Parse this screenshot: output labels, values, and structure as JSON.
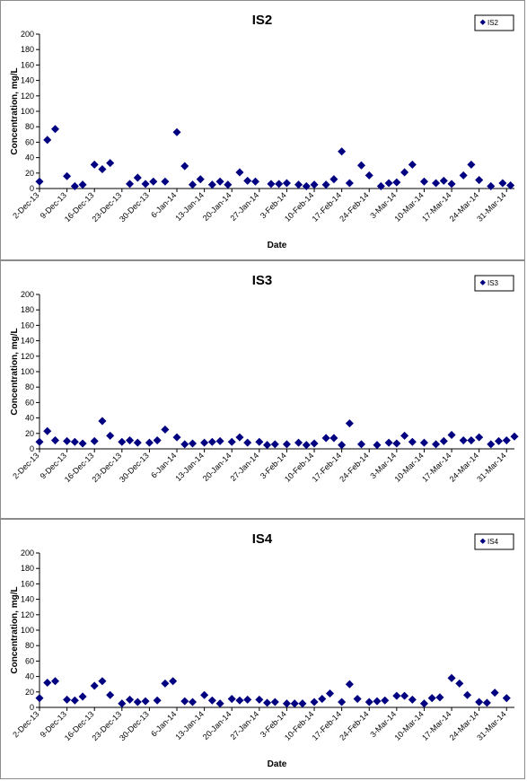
{
  "chart_data": [
    {
      "type": "scatter",
      "title": "IS2",
      "xlabel": "Date",
      "ylabel": "Concentration, mg/L",
      "ylim": [
        0,
        200
      ],
      "yticks": [
        "0",
        "20",
        "40",
        "60",
        "80",
        "100",
        "120",
        "140",
        "160",
        "180",
        "200"
      ],
      "xticks": [
        "2-Dec-13",
        "9-Dec-13",
        "16-Dec-13",
        "23-Dec-13",
        "30-Dec-13",
        "6-Jan-14",
        "13-Jan-14",
        "20-Jan-14",
        "27-Jan-14",
        "3-Feb-14",
        "10-Feb-14",
        "17-Feb-14",
        "24-Feb-14",
        "3-Mar-14",
        "10-Mar-14",
        "17-Mar-14",
        "24-Mar-14",
        "31-Mar-14"
      ],
      "xlim": [
        "2-Dec-13",
        "2-Apr-14"
      ],
      "legend": "top-right",
      "grid": false,
      "series": [
        {
          "name": "IS2",
          "x": [
            "2-Dec-13",
            "4-Dec-13",
            "6-Dec-13",
            "9-Dec-13",
            "11-Dec-13",
            "13-Dec-13",
            "16-Dec-13",
            "18-Dec-13",
            "20-Dec-13",
            "25-Dec-13",
            "27-Dec-13",
            "29-Dec-13",
            "31-Dec-13",
            "3-Jan-14",
            "6-Jan-14",
            "8-Jan-14",
            "10-Jan-14",
            "12-Jan-14",
            "15-Jan-14",
            "17-Jan-14",
            "19-Jan-14",
            "22-Jan-14",
            "24-Jan-14",
            "26-Jan-14",
            "30-Jan-14",
            "1-Feb-14",
            "3-Feb-14",
            "6-Feb-14",
            "8-Feb-14",
            "10-Feb-14",
            "13-Feb-14",
            "15-Feb-14",
            "17-Feb-14",
            "19-Feb-14",
            "22-Feb-14",
            "24-Feb-14",
            "27-Feb-14",
            "1-Mar-14",
            "3-Mar-14",
            "5-Mar-14",
            "7-Mar-14",
            "10-Mar-14",
            "13-Mar-14",
            "15-Mar-14",
            "17-Mar-14",
            "20-Mar-14",
            "22-Mar-14",
            "24-Mar-14",
            "27-Mar-14",
            "30-Mar-14",
            "1-Apr-14"
          ],
          "y": [
            9,
            63,
            77,
            16,
            3,
            5,
            31,
            25,
            33,
            6,
            14,
            6,
            9,
            9,
            73,
            29,
            5,
            12,
            5,
            9,
            5,
            21,
            10,
            9,
            6,
            6,
            7,
            5,
            3,
            5,
            5,
            12,
            48,
            7,
            30,
            17,
            3,
            7,
            8,
            21,
            31,
            9,
            7,
            10,
            6,
            17,
            31,
            11,
            3,
            7,
            4
          ]
        }
      ]
    },
    {
      "type": "scatter",
      "title": "IS3",
      "xlabel": "",
      "ylabel": "Concentration, mg/L",
      "ylim": [
        0,
        200
      ],
      "yticks": [
        "0",
        "20",
        "40",
        "60",
        "80",
        "100",
        "120",
        "140",
        "160",
        "180",
        "200"
      ],
      "xticks": [
        "2-Dec-13",
        "9-Dec-13",
        "16-Dec-13",
        "23-Dec-13",
        "30-Dec-13",
        "6-Jan-14",
        "13-Jan-14",
        "20-Jan-14",
        "27-Jan-14",
        "3-Feb-14",
        "10-Feb-14",
        "17-Feb-14",
        "24-Feb-14",
        "3-Mar-14",
        "10-Mar-14",
        "17-Mar-14",
        "24-Mar-14",
        "31-Mar-14"
      ],
      "xlim": [
        "2-Dec-13",
        "2-Apr-14"
      ],
      "legend": "top-right",
      "grid": false,
      "series": [
        {
          "name": "IS3",
          "x": [
            "2-Dec-13",
            "4-Dec-13",
            "6-Dec-13",
            "9-Dec-13",
            "11-Dec-13",
            "13-Dec-13",
            "16-Dec-13",
            "18-Dec-13",
            "20-Dec-13",
            "23-Dec-13",
            "25-Dec-13",
            "27-Dec-13",
            "30-Dec-13",
            "1-Jan-14",
            "3-Jan-14",
            "6-Jan-14",
            "8-Jan-14",
            "10-Jan-14",
            "13-Jan-14",
            "15-Jan-14",
            "17-Jan-14",
            "20-Jan-14",
            "22-Jan-14",
            "24-Jan-14",
            "27-Jan-14",
            "29-Jan-14",
            "31-Jan-14",
            "3-Feb-14",
            "6-Feb-14",
            "8-Feb-14",
            "10-Feb-14",
            "13-Feb-14",
            "15-Feb-14",
            "17-Feb-14",
            "19-Feb-14",
            "22-Feb-14",
            "26-Feb-14",
            "1-Mar-14",
            "3-Mar-14",
            "5-Mar-14",
            "7-Mar-14",
            "10-Mar-14",
            "13-Mar-14",
            "15-Mar-14",
            "17-Mar-14",
            "20-Mar-14",
            "22-Mar-14",
            "24-Mar-14",
            "27-Mar-14",
            "29-Mar-14",
            "31-Mar-14",
            "2-Apr-14"
          ],
          "y": [
            9,
            23,
            11,
            10,
            9,
            7,
            10,
            36,
            17,
            9,
            11,
            8,
            8,
            11,
            25,
            15,
            6,
            7,
            8,
            9,
            10,
            9,
            15,
            8,
            9,
            5,
            6,
            6,
            8,
            5,
            7,
            14,
            14,
            5,
            33,
            6,
            5,
            8,
            7,
            17,
            9,
            8,
            6,
            10,
            18,
            11,
            11,
            15,
            6,
            10,
            11,
            16
          ]
        }
      ]
    },
    {
      "type": "scatter",
      "title": "IS4",
      "xlabel": "Date",
      "ylabel": "Concentration, mg/L",
      "ylim": [
        0,
        200
      ],
      "yticks": [
        "0",
        "20",
        "40",
        "60",
        "80",
        "100",
        "120",
        "140",
        "160",
        "180",
        "200"
      ],
      "xticks": [
        "2-Dec-13",
        "9-Dec-13",
        "16-Dec-13",
        "23-Dec-13",
        "30-Dec-13",
        "6-Jan-14",
        "13-Jan-14",
        "20-Jan-14",
        "27-Jan-14",
        "3-Feb-14",
        "10-Feb-14",
        "17-Feb-14",
        "24-Feb-14",
        "3-Mar-14",
        "10-Mar-14",
        "17-Mar-14",
        "24-Mar-14",
        "31-Mar-14"
      ],
      "xlim": [
        "2-Dec-13",
        "2-Apr-14"
      ],
      "legend": "top-right",
      "grid": false,
      "series": [
        {
          "name": "IS4",
          "x": [
            "2-Dec-13",
            "4-Dec-13",
            "6-Dec-13",
            "9-Dec-13",
            "11-Dec-13",
            "13-Dec-13",
            "16-Dec-13",
            "18-Dec-13",
            "20-Dec-13",
            "23-Dec-13",
            "25-Dec-13",
            "27-Dec-13",
            "29-Dec-13",
            "1-Jan-14",
            "3-Jan-14",
            "5-Jan-14",
            "8-Jan-14",
            "10-Jan-14",
            "13-Jan-14",
            "15-Jan-14",
            "17-Jan-14",
            "20-Jan-14",
            "22-Jan-14",
            "24-Jan-14",
            "27-Jan-14",
            "29-Jan-14",
            "31-Jan-14",
            "3-Feb-14",
            "5-Feb-14",
            "7-Feb-14",
            "10-Feb-14",
            "12-Feb-14",
            "14-Feb-14",
            "17-Feb-14",
            "19-Feb-14",
            "21-Feb-14",
            "24-Feb-14",
            "26-Feb-14",
            "28-Feb-14",
            "3-Mar-14",
            "5-Mar-14",
            "7-Mar-14",
            "10-Mar-14",
            "12-Mar-14",
            "14-Mar-14",
            "17-Mar-14",
            "19-Mar-14",
            "21-Mar-14",
            "24-Mar-14",
            "26-Mar-14",
            "28-Mar-14",
            "31-Mar-14"
          ],
          "y": [
            12,
            32,
            34,
            10,
            9,
            14,
            28,
            34,
            16,
            5,
            10,
            7,
            8,
            9,
            31,
            34,
            8,
            7,
            16,
            9,
            5,
            11,
            9,
            10,
            10,
            6,
            7,
            5,
            5,
            5,
            7,
            11,
            18,
            7,
            30,
            11,
            7,
            8,
            9,
            15,
            15,
            10,
            5,
            12,
            13,
            38,
            31,
            16,
            7,
            6,
            19,
            12
          ]
        }
      ]
    }
  ]
}
